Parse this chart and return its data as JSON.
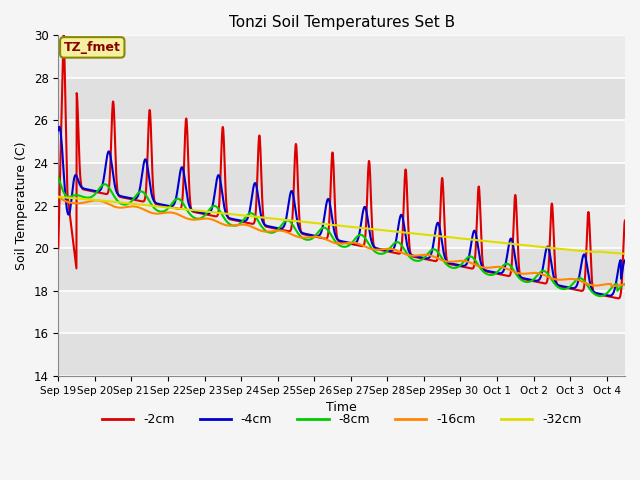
{
  "title": "Tonzi Soil Temperatures Set B",
  "xlabel": "Time",
  "ylabel": "Soil Temperature (C)",
  "ylim": [
    14,
    30
  ],
  "xlim_start": 0,
  "xlim_end": 15.5,
  "annotation": "TZ_fmet",
  "tick_labels": [
    "Sep 19",
    "Sep 20",
    "Sep 21",
    "Sep 22",
    "Sep 23",
    "Sep 24",
    "Sep 25",
    "Sep 26",
    "Sep 27",
    "Sep 28",
    "Sep 29",
    "Sep 30",
    "Oct 1",
    "Oct 2",
    "Oct 3",
    "Oct 4"
  ],
  "series": {
    "-2cm": {
      "color": "#dd0000",
      "linewidth": 1.5
    },
    "-4cm": {
      "color": "#0000cc",
      "linewidth": 1.5
    },
    "-8cm": {
      "color": "#00cc00",
      "linewidth": 1.5
    },
    "-16cm": {
      "color": "#ff8800",
      "linewidth": 1.5
    },
    "-32cm": {
      "color": "#dddd00",
      "linewidth": 1.5
    }
  },
  "plot_bg": "#e8e8e8",
  "grid_bg": "#d8d8d8",
  "grid_color": "#ffffff",
  "legend_items": [
    "-2cm",
    "-4cm",
    "-8cm",
    "-16cm",
    "-32cm"
  ],
  "legend_colors": [
    "#dd0000",
    "#0000cc",
    "#00cc00",
    "#ff8800",
    "#dddd00"
  ]
}
